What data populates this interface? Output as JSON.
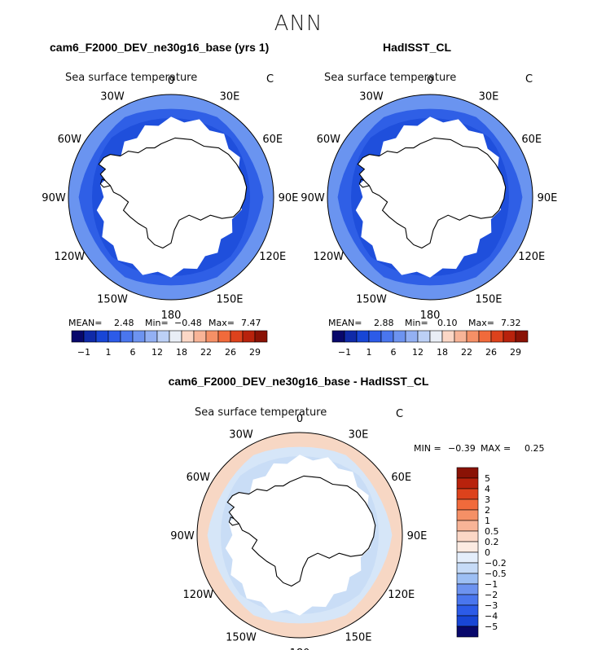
{
  "title": "ANN",
  "panels": [
    {
      "title": "cam6_F2000_DEV_ne30g16_base (yrs 1)",
      "variable": "Sea surface temperature",
      "units": "C",
      "stats": {
        "mean_label": "MEAN=",
        "mean": "2.48",
        "min_label": "Min=",
        "min": "−0.48",
        "max_label": "Max=",
        "max": "7.47"
      }
    },
    {
      "title": "HadISST_CL",
      "variable": "Sea surface temperature",
      "units": "C",
      "stats": {
        "mean_label": "MEAN=",
        "mean": "2.88",
        "min_label": "Min=",
        "min": "0.10",
        "max_label": "Max=",
        "max": "7.32"
      }
    },
    {
      "title": "cam6_F2000_DEV_ne30g16_base - HadISST_CL",
      "variable": "Sea surface temperature",
      "units": "C",
      "stats": {
        "min_label": "MIN =",
        "min": "−0.39",
        "max_label": "MAX =",
        "max": "0.25"
      }
    }
  ],
  "longitude_labels": [
    "0",
    "30E",
    "60E",
    "90E",
    "120E",
    "150E",
    "180",
    "150W",
    "120W",
    "90W",
    "60W",
    "30W"
  ],
  "chart_data": [
    {
      "type": "heatmap",
      "projection": "south polar stereographic",
      "colorbar": {
        "orientation": "horizontal",
        "tick_labels": [
          "−1",
          "1",
          "6",
          "12",
          "18",
          "22",
          "26",
          "29"
        ],
        "colors": [
          "#08086b",
          "#0f2aa8",
          "#1846d6",
          "#2c5be8",
          "#4a76ee",
          "#6d93f0",
          "#93b0f3",
          "#bcd0f6",
          "#e9eef6",
          "#fbd7c6",
          "#f8b497",
          "#f59066",
          "#f16a3b",
          "#dd421c",
          "#b8220c",
          "#8a1205"
        ]
      },
      "open_ocean_color": "#2f5fe6",
      "near_ice_color": "#1f4fdc",
      "warm_edge_color": "#6a94f0"
    },
    {
      "type": "heatmap",
      "projection": "south polar stereographic",
      "colorbar": {
        "orientation": "horizontal",
        "tick_labels": [
          "−1",
          "1",
          "6",
          "12",
          "18",
          "22",
          "26",
          "29"
        ],
        "colors": [
          "#08086b",
          "#0f2aa8",
          "#1846d6",
          "#2c5be8",
          "#4a76ee",
          "#6d93f0",
          "#93b0f3",
          "#bcd0f6",
          "#e9eef6",
          "#fbd7c6",
          "#f8b497",
          "#f59066",
          "#f16a3b",
          "#dd421c",
          "#b8220c",
          "#8a1205"
        ]
      },
      "open_ocean_color": "#2f5fe6",
      "near_ice_color": "#1f4fdc",
      "warm_edge_color": "#6a94f0"
    },
    {
      "type": "heatmap",
      "projection": "south polar stereographic",
      "colorbar": {
        "orientation": "vertical",
        "tick_labels": [
          "5",
          "4",
          "3",
          "2",
          "1",
          "0.5",
          "0.2",
          "0",
          "−0.2",
          "−0.5",
          "−1",
          "−2",
          "−3",
          "−4",
          "−5"
        ],
        "colors": [
          "#8a1205",
          "#b8220c",
          "#dd421c",
          "#f16a3b",
          "#f59066",
          "#f8b497",
          "#fbd7c6",
          "#fcebe2",
          "#e4eefb",
          "#c6dbf7",
          "#9dbff4",
          "#6d93f0",
          "#4a76ee",
          "#2c5be8",
          "#1846d6",
          "#08086b"
        ]
      },
      "open_ocean_color": "#d6e6f8",
      "near_ice_color": "#c9ddf6",
      "warm_edge_color": "#f7d7c4"
    }
  ]
}
